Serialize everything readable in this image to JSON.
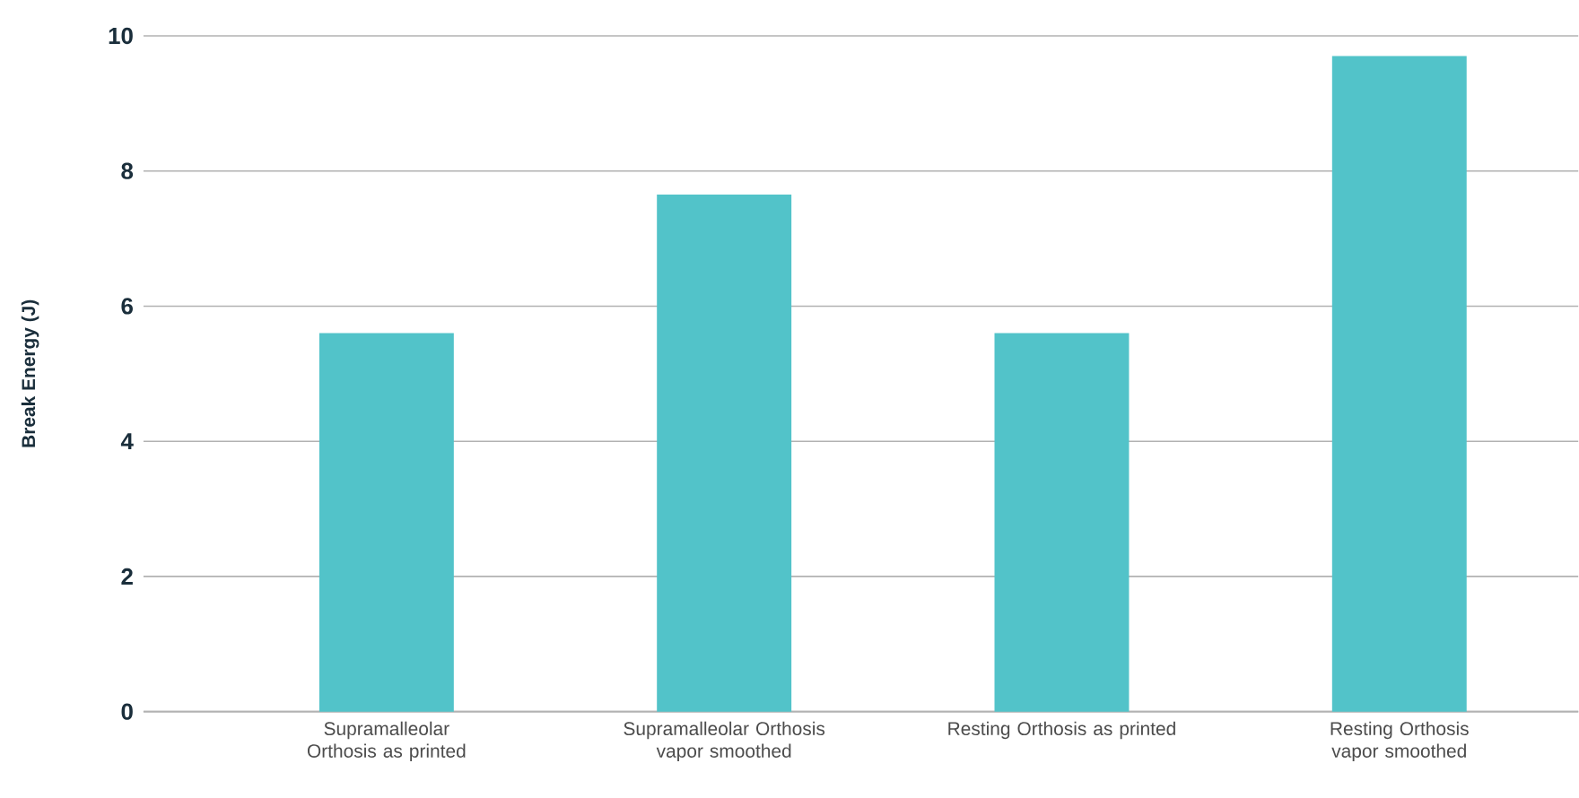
{
  "chart_data": {
    "type": "bar",
    "ylabel": "Break Energy (J)",
    "categories": [
      "Supramalleolar Orthosis as printed",
      "Supramalleolar Orthosis vapor smoothed",
      "Resting Orthosis as printed",
      "Resting Orthosis vapor smoothed"
    ],
    "values": [
      5.6,
      7.65,
      5.6,
      9.7
    ],
    "color": "#52c3c9",
    "ylim": [
      0,
      10
    ],
    "yticks": [
      0,
      2,
      4,
      6,
      8,
      10
    ],
    "grid": "y"
  }
}
